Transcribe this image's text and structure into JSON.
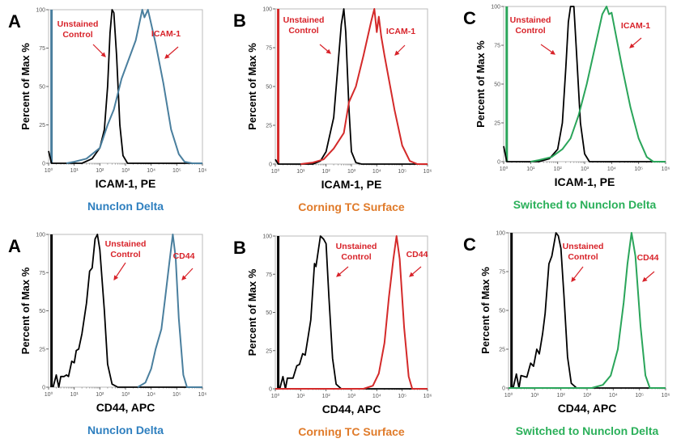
{
  "chart_data": [
    {
      "type": "line",
      "panel_letter": "A",
      "xlabel": "ICAM-1, PE",
      "ylabel": "Percent of Max %",
      "subtitle": "Nunclon Delta",
      "subtitle_color": "#2e7fbf",
      "x_scale": "log",
      "xlim": [
        1,
        1000000
      ],
      "ylim": [
        0,
        100
      ],
      "xticks": [
        "10⁰",
        "10¹",
        "10²",
        "10³",
        "10⁴",
        "10⁵",
        "10⁶"
      ],
      "yticks": [
        "0",
        "25",
        "50",
        "75",
        "100"
      ],
      "grid": false,
      "annotations": [
        "Unstained",
        "Control",
        "ICAM-1"
      ],
      "annotation_color": "#d8232a",
      "series": [
        {
          "color": "#000000",
          "points": [
            [
              1,
              8
            ],
            [
              1.3,
              0
            ],
            [
              20,
              0
            ],
            [
              50,
              3
            ],
            [
              100,
              10
            ],
            [
              150,
              22
            ],
            [
              200,
              50
            ],
            [
              250,
              85
            ],
            [
              300,
              100
            ],
            [
              350,
              98
            ],
            [
              450,
              70
            ],
            [
              600,
              25
            ],
            [
              800,
              5
            ],
            [
              1200,
              0
            ],
            [
              1000000,
              0
            ]
          ]
        },
        {
          "color": "#4a7f9e",
          "points": [
            [
              5,
              0
            ],
            [
              10,
              1
            ],
            [
              30,
              3
            ],
            [
              100,
              10
            ],
            [
              200,
              25
            ],
            [
              350,
              35
            ],
            [
              700,
              55
            ],
            [
              1500,
              70
            ],
            [
              2500,
              80
            ],
            [
              4500,
              100
            ],
            [
              5500,
              95
            ],
            [
              7500,
              100
            ],
            [
              15000,
              78
            ],
            [
              30000,
              52
            ],
            [
              60000,
              22
            ],
            [
              120000,
              6
            ],
            [
              200000,
              1
            ],
            [
              400000,
              0
            ],
            [
              1000000,
              0
            ]
          ]
        }
      ],
      "baseline_bar": {
        "x": 1.3,
        "value": 100,
        "color": "#4a7f9e"
      }
    },
    {
      "type": "line",
      "panel_letter": "B",
      "xlabel": "ICAM-1, PE",
      "ylabel": "Percent of Max %",
      "subtitle": "Corning TC Surface",
      "subtitle_color": "#e07b2a",
      "x_scale": "log",
      "xlim": [
        1,
        1000000
      ],
      "ylim": [
        0,
        100
      ],
      "xticks": [
        "10⁰",
        "10¹",
        "10²",
        "10³",
        "10⁴",
        "10⁵",
        "10⁶"
      ],
      "yticks": [
        "0",
        "25",
        "50",
        "75",
        "100"
      ],
      "grid": false,
      "annotations": [
        "Unstained",
        "Control",
        "ICAM-1"
      ],
      "annotation_color": "#d8232a",
      "series": [
        {
          "color": "#000000",
          "points": [
            [
              1,
              3
            ],
            [
              1.3,
              0
            ],
            [
              30,
              0
            ],
            [
              60,
              2
            ],
            [
              100,
              8
            ],
            [
              200,
              30
            ],
            [
              300,
              65
            ],
            [
              400,
              90
            ],
            [
              500,
              100
            ],
            [
              600,
              85
            ],
            [
              800,
              35
            ],
            [
              1000,
              8
            ],
            [
              1500,
              1
            ],
            [
              2500,
              0
            ],
            [
              1000000,
              0
            ]
          ]
        },
        {
          "color": "#d42a2a",
          "points": [
            [
              10,
              0
            ],
            [
              30,
              1
            ],
            [
              80,
              3
            ],
            [
              200,
              10
            ],
            [
              500,
              20
            ],
            [
              800,
              40
            ],
            [
              1500,
              50
            ],
            [
              3000,
              70
            ],
            [
              6000,
              92
            ],
            [
              8000,
              100
            ],
            [
              10000,
              85
            ],
            [
              12000,
              95
            ],
            [
              15000,
              82
            ],
            [
              20000,
              70
            ],
            [
              50000,
              35
            ],
            [
              100000,
              12
            ],
            [
              200000,
              2
            ],
            [
              400000,
              0
            ],
            [
              1000000,
              0
            ]
          ]
        }
      ],
      "baseline_bar": {
        "x": 1.3,
        "value": 100,
        "color": "#d42a2a"
      }
    },
    {
      "type": "line",
      "panel_letter": "C",
      "xlabel": "ICAM-1, PE",
      "ylabel": "Percent of Max %",
      "subtitle": "Switched to Nunclon Delta",
      "subtitle_color": "#2bb05a",
      "x_scale": "log",
      "xlim": [
        1,
        1000000
      ],
      "ylim": [
        0,
        100
      ],
      "xticks": [
        "10⁰",
        "10¹",
        "10²",
        "10³",
        "10⁴",
        "10⁵",
        "10⁶"
      ],
      "yticks": [
        "0",
        "25",
        "50",
        "75",
        "100"
      ],
      "grid": false,
      "annotations": [
        "Unstained",
        "Control",
        "ICAM-1"
      ],
      "annotation_color": "#d8232a",
      "series": [
        {
          "color": "#000000",
          "points": [
            [
              1,
              10
            ],
            [
              1.3,
              0
            ],
            [
              20,
              0
            ],
            [
              50,
              2
            ],
            [
              100,
              8
            ],
            [
              150,
              25
            ],
            [
              200,
              60
            ],
            [
              250,
              90
            ],
            [
              300,
              100
            ],
            [
              400,
              100
            ],
            [
              500,
              70
            ],
            [
              700,
              25
            ],
            [
              1000,
              5
            ],
            [
              1500,
              0
            ],
            [
              1000000,
              0
            ]
          ]
        },
        {
          "color": "#2aa55a",
          "points": [
            [
              10,
              0
            ],
            [
              20,
              1
            ],
            [
              60,
              3
            ],
            [
              150,
              8
            ],
            [
              300,
              15
            ],
            [
              600,
              30
            ],
            [
              1200,
              50
            ],
            [
              2500,
              75
            ],
            [
              4500,
              95
            ],
            [
              6500,
              100
            ],
            [
              8000,
              95
            ],
            [
              10000,
              96
            ],
            [
              15000,
              80
            ],
            [
              25000,
              60
            ],
            [
              50000,
              35
            ],
            [
              100000,
              15
            ],
            [
              200000,
              3
            ],
            [
              350000,
              0
            ],
            [
              1000000,
              0
            ]
          ]
        }
      ],
      "baseline_bar": {
        "x": 1.3,
        "value": 100,
        "color": "#2aa55a"
      }
    },
    {
      "type": "line",
      "panel_letter": "A",
      "xlabel": "CD44, APC",
      "ylabel": "Percent of Max %",
      "subtitle": "Nunclon Delta",
      "subtitle_color": "#2e7fbf",
      "x_scale": "log",
      "xlim": [
        1,
        1000000
      ],
      "ylim": [
        0,
        100
      ],
      "xticks": [
        "10⁰",
        "10¹",
        "10²",
        "10³",
        "10⁴",
        "10⁵",
        "10⁶"
      ],
      "yticks": [
        "0",
        "25",
        "50",
        "75",
        "100"
      ],
      "grid": false,
      "annotations": [
        "Unstained",
        "Control",
        "CD44"
      ],
      "annotation_color": "#d8232a",
      "series": [
        {
          "color": "#000000",
          "points": [
            [
              1.5,
              0
            ],
            [
              2,
              8
            ],
            [
              2.5,
              0
            ],
            [
              3,
              7
            ],
            [
              4,
              7
            ],
            [
              5,
              8
            ],
            [
              6,
              7
            ],
            [
              8,
              17
            ],
            [
              10,
              16
            ],
            [
              12,
              24
            ],
            [
              15,
              25
            ],
            [
              20,
              35
            ],
            [
              30,
              55
            ],
            [
              40,
              76
            ],
            [
              50,
              78
            ],
            [
              65,
              97
            ],
            [
              80,
              100
            ],
            [
              100,
              90
            ],
            [
              150,
              50
            ],
            [
              200,
              15
            ],
            [
              300,
              2
            ],
            [
              500,
              0
            ],
            [
              1000000,
              0
            ]
          ]
        },
        {
          "color": "#4a7f9e",
          "points": [
            [
              3000,
              0
            ],
            [
              6000,
              3
            ],
            [
              10000,
              12
            ],
            [
              15000,
              25
            ],
            [
              25000,
              38
            ],
            [
              35000,
              58
            ],
            [
              50000,
              80
            ],
            [
              70000,
              100
            ],
            [
              90000,
              85
            ],
            [
              120000,
              45
            ],
            [
              180000,
              8
            ],
            [
              250000,
              0
            ],
            [
              1000000,
              0
            ]
          ]
        }
      ],
      "baseline_bar": {
        "x": 1.3,
        "value": 100,
        "color": "#000000"
      }
    },
    {
      "type": "line",
      "panel_letter": "B",
      "xlabel": "CD44, APC",
      "ylabel": "Percent of Max %",
      "subtitle": "Corning TC Surface",
      "subtitle_color": "#e07b2a",
      "x_scale": "log",
      "xlim": [
        1,
        1000000
      ],
      "ylim": [
        0,
        100
      ],
      "xticks": [
        "10⁰",
        "10¹",
        "10²",
        "10³",
        "10⁴",
        "10⁵",
        "10⁶"
      ],
      "yticks": [
        "0",
        "25",
        "50",
        "75",
        "100"
      ],
      "grid": false,
      "annotations": [
        "Unstained",
        "Control",
        "CD44"
      ],
      "annotation_color": "#d8232a",
      "series": [
        {
          "color": "#000000",
          "points": [
            [
              1.5,
              0
            ],
            [
              2,
              8
            ],
            [
              2.5,
              0
            ],
            [
              3,
              7
            ],
            [
              5,
              7
            ],
            [
              7,
              15
            ],
            [
              9,
              16
            ],
            [
              12,
              23
            ],
            [
              15,
              22
            ],
            [
              20,
              35
            ],
            [
              25,
              45
            ],
            [
              35,
              82
            ],
            [
              40,
              80
            ],
            [
              60,
              100
            ],
            [
              80,
              98
            ],
            [
              100,
              95
            ],
            [
              130,
              60
            ],
            [
              180,
              20
            ],
            [
              250,
              3
            ],
            [
              400,
              0
            ],
            [
              1000000,
              0
            ]
          ]
        },
        {
          "color": "#d42a2a",
          "points": [
            [
              1,
              0
            ],
            [
              3000,
              0
            ],
            [
              7000,
              2
            ],
            [
              12000,
              10
            ],
            [
              20000,
              30
            ],
            [
              30000,
              60
            ],
            [
              45000,
              85
            ],
            [
              60000,
              100
            ],
            [
              80000,
              85
            ],
            [
              120000,
              40
            ],
            [
              180000,
              8
            ],
            [
              250000,
              0
            ],
            [
              1000000,
              0
            ]
          ]
        }
      ],
      "baseline_bar": {
        "x": 1.3,
        "value": 100,
        "color": "#000000"
      }
    },
    {
      "type": "line",
      "panel_letter": "C",
      "xlabel": "CD44, APC",
      "ylabel": "Percent of Max %",
      "subtitle": "Switched to Nunclon Delta",
      "subtitle_color": "#2bb05a",
      "x_scale": "log",
      "xlim": [
        1,
        1000000
      ],
      "ylim": [
        0,
        100
      ],
      "xticks": [
        "10⁰",
        "10¹",
        "10²",
        "10³",
        "10⁴",
        "10⁵",
        "10⁶"
      ],
      "yticks": [
        "0",
        "25",
        "50",
        "75",
        "100"
      ],
      "grid": false,
      "annotations": [
        "Unstained",
        "Control",
        "CD44"
      ],
      "annotation_color": "#d8232a",
      "series": [
        {
          "color": "#000000",
          "points": [
            [
              1.5,
              0
            ],
            [
              2,
              9
            ],
            [
              2.5,
              0
            ],
            [
              3,
              8
            ],
            [
              5,
              7
            ],
            [
              7,
              16
            ],
            [
              9,
              14
            ],
            [
              12,
              25
            ],
            [
              15,
              22
            ],
            [
              20,
              35
            ],
            [
              25,
              48
            ],
            [
              35,
              80
            ],
            [
              45,
              85
            ],
            [
              65,
              100
            ],
            [
              80,
              98
            ],
            [
              100,
              90
            ],
            [
              130,
              60
            ],
            [
              180,
              20
            ],
            [
              250,
              3
            ],
            [
              400,
              0
            ],
            [
              1000000,
              0
            ]
          ]
        },
        {
          "color": "#2aa55a",
          "points": [
            [
              1,
              0
            ],
            [
              1500,
              0
            ],
            [
              4000,
              2
            ],
            [
              8000,
              8
            ],
            [
              15000,
              25
            ],
            [
              25000,
              55
            ],
            [
              35000,
              80
            ],
            [
              50000,
              100
            ],
            [
              70000,
              85
            ],
            [
              110000,
              40
            ],
            [
              170000,
              8
            ],
            [
              250000,
              0
            ],
            [
              1000000,
              0
            ]
          ]
        }
      ],
      "baseline_bar": {
        "x": 1.3,
        "value": 100,
        "color": "#000000"
      }
    }
  ]
}
